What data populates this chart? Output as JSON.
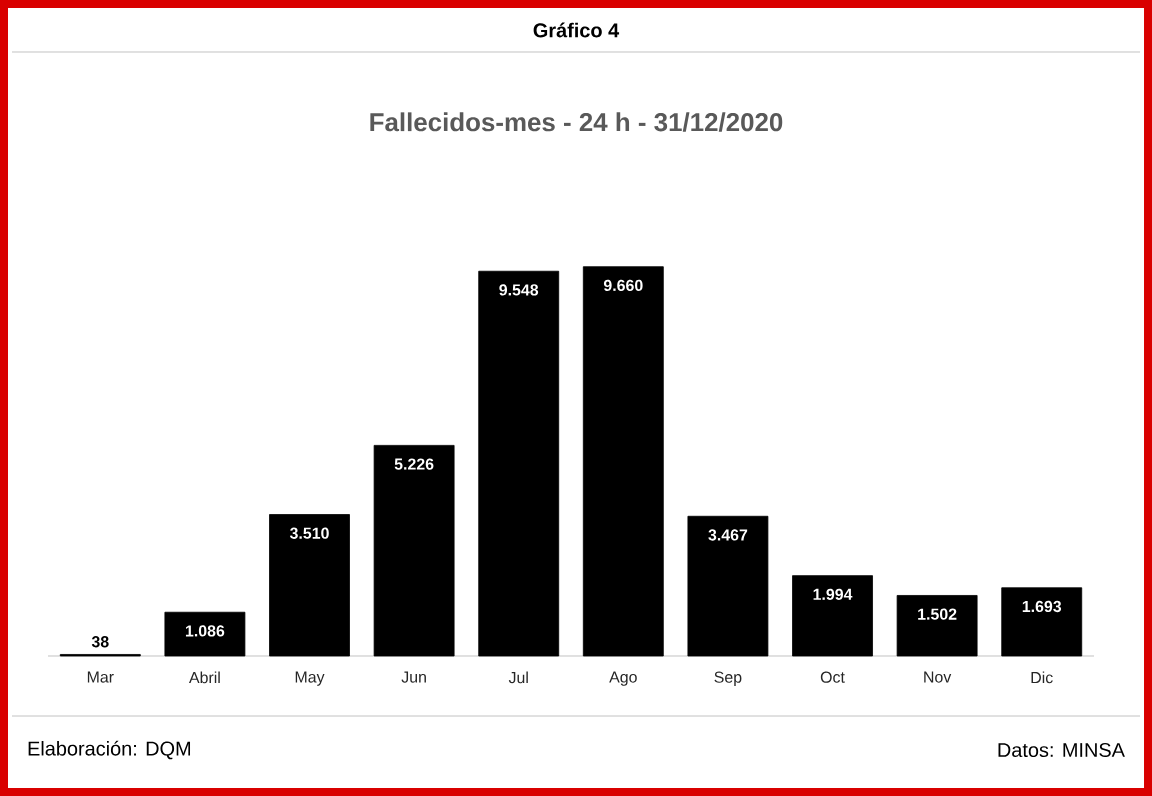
{
  "chart_data": {
    "type": "bar",
    "title": "Gráfico 4",
    "subtitle": "Fallecidos-mes - 24 h - 31/12/2020",
    "categories": [
      "Mar",
      "Abril",
      "May",
      "Jun",
      "Jul",
      "Ago",
      "Sep",
      "Oct",
      "Nov",
      "Dic"
    ],
    "values": [
      38,
      1086,
      3510,
      5226,
      9548,
      9660,
      3467,
      1994,
      1502,
      1693
    ],
    "value_labels": [
      "38",
      "1.086",
      "3.510",
      "5.226",
      "9.548",
      "9.660",
      "3.467",
      "1.994",
      "1.502",
      "1.693"
    ],
    "color": "#000000",
    "annotations": [
      "Elaboración: DQM",
      "Datos: MINSA"
    ]
  }
}
